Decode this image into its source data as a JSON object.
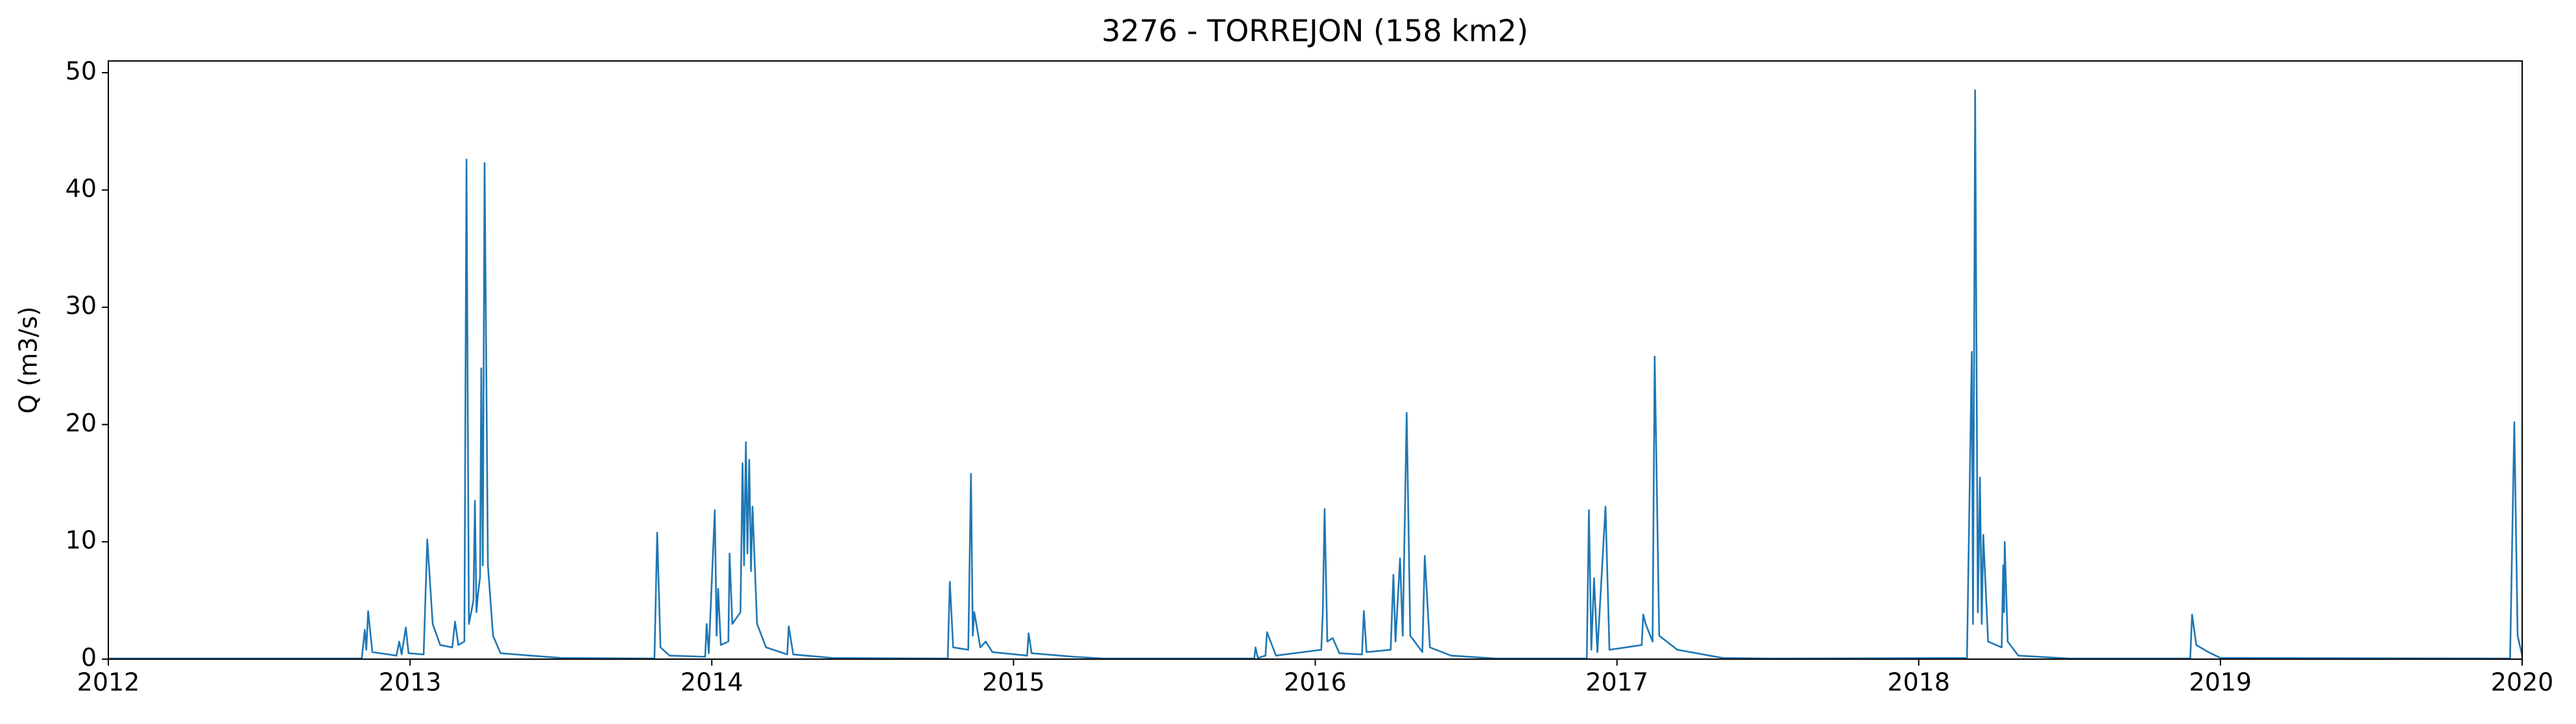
{
  "chart_data": {
    "type": "line",
    "title": "3276 - TORREJON (158 km2)",
    "y_label": "Q (m3/s)",
    "xlim": [
      2012,
      2020
    ],
    "xticks": [
      2012,
      2013,
      2014,
      2015,
      2016,
      2017,
      2018,
      2019,
      2020
    ],
    "ylim": [
      0,
      51
    ],
    "yticks": [
      0,
      10,
      20,
      30,
      40,
      50
    ],
    "grid": false,
    "series": [
      {
        "name": "Q",
        "color": "#1f77b4",
        "x": [
          2012.0,
          2012.84,
          2012.85,
          2012.855,
          2012.861,
          2012.875,
          2012.955,
          2012.964,
          2012.972,
          2012.986,
          2012.995,
          2013.045,
          2013.057,
          2013.075,
          2013.1,
          2013.14,
          2013.149,
          2013.16,
          2013.18,
          2013.187,
          2013.195,
          2013.21,
          2013.215,
          2013.22,
          2013.225,
          2013.232,
          2013.236,
          2013.241,
          2013.247,
          2013.258,
          2013.275,
          2013.3,
          2013.4,
          2013.5,
          2013.81,
          2013.819,
          2013.83,
          2013.86,
          2013.978,
          2013.983,
          2013.99,
          2014.01,
          2014.016,
          2014.021,
          2014.03,
          2014.055,
          2014.059,
          2014.068,
          2014.095,
          2014.102,
          2014.107,
          2014.113,
          2014.118,
          2014.124,
          2014.13,
          2014.135,
          2014.15,
          2014.18,
          2014.25,
          2014.255,
          2014.27,
          2014.4,
          2014.782,
          2014.789,
          2014.8,
          2014.85,
          2014.859,
          2014.865,
          2014.87,
          2014.89,
          2014.908,
          2014.93,
          2015.045,
          2015.05,
          2015.06,
          2015.2,
          2015.3,
          2015.798,
          2015.802,
          2015.81,
          2015.835,
          2015.84,
          2015.87,
          2016.02,
          2016.025,
          2016.031,
          2016.04,
          2016.058,
          2016.08,
          2016.155,
          2016.161,
          2016.17,
          2016.25,
          2016.259,
          2016.266,
          2016.281,
          2016.29,
          2016.303,
          2016.315,
          2016.355,
          2016.363,
          2016.38,
          2016.45,
          2016.6,
          2016.9,
          2016.907,
          2016.915,
          2016.924,
          2016.935,
          2016.962,
          2016.975,
          2017.082,
          2017.087,
          2017.095,
          2017.118,
          2017.125,
          2017.14,
          2017.2,
          2017.35,
          2017.5,
          2018.16,
          2018.176,
          2018.18,
          2018.187,
          2018.196,
          2018.203,
          2018.209,
          2018.214,
          2018.23,
          2018.275,
          2018.28,
          2018.283,
          2018.285,
          2018.295,
          2018.33,
          2018.5,
          2018.9,
          2018.906,
          2018.92,
          2018.96,
          2019.0,
          2019.96,
          2019.974,
          2019.985,
          2020.0
        ],
        "values": [
          0.05,
          0.05,
          2.5,
          0.8,
          4.1,
          0.6,
          0.3,
          1.5,
          0.4,
          2.7,
          0.5,
          0.4,
          10.2,
          3,
          1.2,
          1,
          3.2,
          1.2,
          1.5,
          42.6,
          3,
          5,
          13.5,
          4,
          5.5,
          7,
          24.8,
          8,
          42.3,
          8,
          2,
          0.5,
          0.3,
          0.1,
          0.05,
          10.8,
          1,
          0.3,
          0.2,
          3,
          0.5,
          12.7,
          2,
          6,
          1.2,
          1.5,
          9,
          3,
          4,
          16.7,
          8,
          18.5,
          9,
          17,
          7.5,
          13,
          3,
          1,
          0.4,
          2.8,
          0.4,
          0.1,
          0.05,
          6.6,
          1,
          0.8,
          15.8,
          2,
          4,
          1,
          1.5,
          0.6,
          0.3,
          2.2,
          0.5,
          0.2,
          0.05,
          0.05,
          1,
          0.1,
          0.3,
          2.3,
          0.3,
          0.8,
          4,
          12.8,
          1.5,
          1.8,
          0.5,
          0.4,
          4.1,
          0.6,
          0.8,
          7.2,
          1.5,
          8.6,
          2,
          21,
          2,
          0.6,
          8.8,
          1,
          0.3,
          0.05,
          0.05,
          12.7,
          0.8,
          6.9,
          0.6,
          13,
          0.8,
          1.2,
          3.8,
          3,
          1.5,
          25.8,
          2,
          0.8,
          0.1,
          0.05,
          0.1,
          26.2,
          3,
          48.5,
          4,
          15.5,
          3,
          10.6,
          1.5,
          1,
          8,
          4,
          10,
          1.5,
          0.3,
          0.05,
          0.05,
          3.8,
          1.2,
          0.6,
          0.1,
          0.05,
          20.2,
          2,
          0.3
        ]
      }
    ]
  }
}
